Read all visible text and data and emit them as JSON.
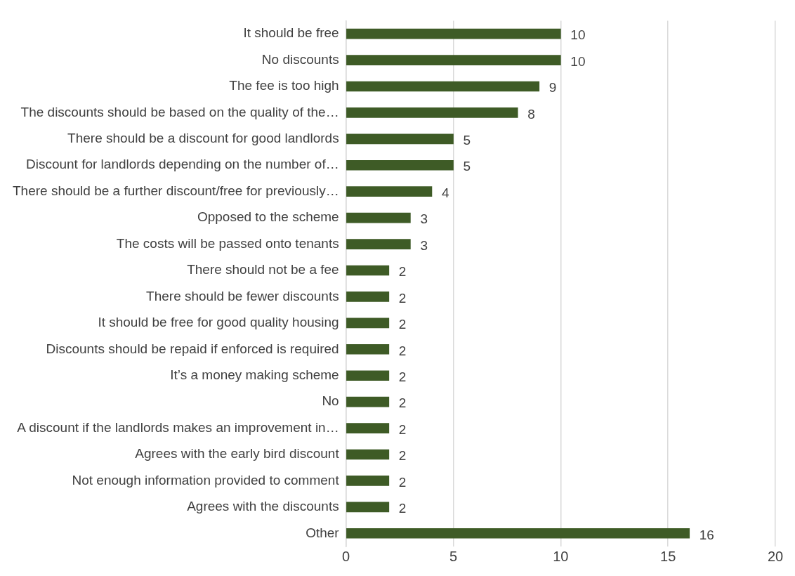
{
  "chart_data": {
    "type": "bar",
    "orientation": "horizontal",
    "categories": [
      "It should be free",
      "No discounts",
      "The fee is too high",
      "The discounts should be based on the quality of the…",
      "There should be a discount for good landlords",
      "Discount for landlords depending on the number of…",
      "There should be a further discount/free for previously…",
      "Opposed to the scheme",
      "The costs will be passed onto tenants",
      "There should not be a fee",
      "There should be fewer discounts",
      "It should be free for good quality housing",
      "Discounts should be repaid if enforced is required",
      "It’s a money making scheme",
      "No",
      "A discount if the landlords makes an improvement in…",
      "Agrees with the early bird discount",
      "Not enough information provided to comment",
      "Agrees with the discounts",
      "Other"
    ],
    "values": [
      10,
      10,
      9,
      8,
      5,
      5,
      4,
      3,
      3,
      2,
      2,
      2,
      2,
      2,
      2,
      2,
      2,
      2,
      2,
      16
    ],
    "color": "#3e5b26",
    "xlim": [
      0,
      20
    ],
    "xticks": [
      0,
      5,
      10,
      15,
      20
    ],
    "grid": "x",
    "data_labels": true,
    "legend": false
  }
}
